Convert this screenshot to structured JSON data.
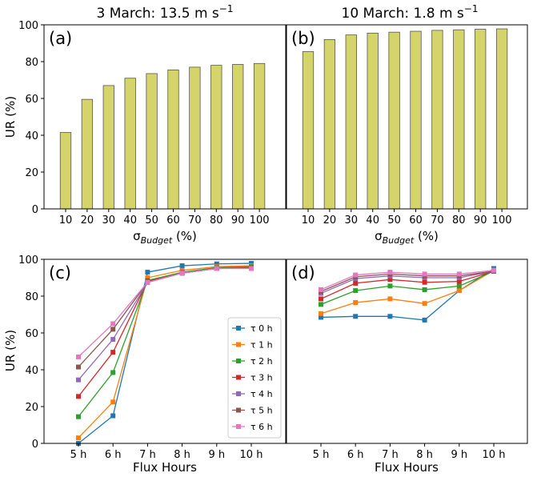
{
  "titles": {
    "left": "3 March: 13.5 m s",
    "left_sup": "−1",
    "right": "10 March: 1.8 m s",
    "right_sup": "−1"
  },
  "labels": {
    "ur": "UR (%)",
    "sigma_prefix": "σ",
    "sigma_sub": "Budget",
    "sigma_suffix": " (%)",
    "flux_hours": "Flux Hours"
  },
  "colors": {
    "bar_fill": "#d4d46a",
    "bar_edge": "#555555",
    "series": [
      "#1f77b4",
      "#ff7f0e",
      "#2ca02c",
      "#d62728",
      "#9467bd",
      "#8c564b",
      "#e377c2"
    ]
  },
  "chart_data": [
    {
      "panel": "(a)",
      "type": "bar",
      "categories": [
        "10",
        "20",
        "30",
        "40",
        "50",
        "60",
        "70",
        "80",
        "90",
        "100"
      ],
      "values": [
        41.5,
        59.5,
        67,
        71,
        73.5,
        75.5,
        77,
        78,
        78.5,
        79
      ],
      "ylim": [
        0,
        100
      ],
      "yticks": [
        "0",
        "20",
        "40",
        "60",
        "80",
        "100"
      ]
    },
    {
      "panel": "(b)",
      "type": "bar",
      "categories": [
        "10",
        "20",
        "30",
        "40",
        "50",
        "60",
        "70",
        "80",
        "90",
        "100"
      ],
      "values": [
        85.5,
        92,
        94.5,
        95.5,
        96,
        96.5,
        97,
        97.3,
        97.6,
        97.8
      ],
      "ylim": [
        0,
        100
      ]
    },
    {
      "panel": "(c)",
      "type": "line",
      "x": [
        "5 h",
        "6 h",
        "7 h",
        "8 h",
        "9 h",
        "10 h"
      ],
      "ylim": [
        0,
        100
      ],
      "yticks": [
        "0",
        "20",
        "40",
        "60",
        "80",
        "100"
      ],
      "series": [
        {
          "name": "τ 0 h",
          "values": [
            0,
            15,
            93,
            96.5,
            97.5,
            97.8
          ]
        },
        {
          "name": "τ 1 h",
          "values": [
            3,
            22.5,
            90,
            94,
            96,
            96.5
          ]
        },
        {
          "name": "τ 2 h",
          "values": [
            14.5,
            38.5,
            88.5,
            93,
            95.5,
            96
          ]
        },
        {
          "name": "τ 3 h",
          "values": [
            25.5,
            49.5,
            88,
            92.5,
            95,
            95.5
          ]
        },
        {
          "name": "τ 4 h",
          "values": [
            34.5,
            56.5,
            87.5,
            92.5,
            95,
            95.3
          ]
        },
        {
          "name": "τ 5 h",
          "values": [
            41.5,
            62,
            87.5,
            92.5,
            95,
            95.2
          ]
        },
        {
          "name": "τ 6 h",
          "values": [
            47,
            65,
            87.5,
            92.5,
            95,
            95
          ]
        }
      ]
    },
    {
      "panel": "(d)",
      "type": "line",
      "x": [
        "5 h",
        "6 h",
        "7 h",
        "8 h",
        "9 h",
        "10 h"
      ],
      "ylim": [
        0,
        100
      ],
      "series": [
        {
          "name": "τ 0 h",
          "values": [
            68.5,
            69,
            69,
            67,
            83,
            95
          ]
        },
        {
          "name": "τ 1 h",
          "values": [
            70.5,
            76.5,
            78.5,
            76,
            83,
            94
          ]
        },
        {
          "name": "τ 2 h",
          "values": [
            75.5,
            83,
            85.5,
            83.5,
            85.5,
            93.5
          ]
        },
        {
          "name": "τ 3 h",
          "values": [
            78.5,
            87,
            89,
            87.5,
            88,
            93.5
          ]
        },
        {
          "name": "τ 4 h",
          "values": [
            81.5,
            89.5,
            91,
            90,
            90,
            93.5
          ]
        },
        {
          "name": "τ 5 h",
          "values": [
            82.5,
            90.5,
            92,
            91,
            91,
            93.5
          ]
        },
        {
          "name": "τ 6 h",
          "values": [
            83.5,
            91.5,
            93,
            92,
            92,
            94
          ]
        }
      ]
    }
  ]
}
